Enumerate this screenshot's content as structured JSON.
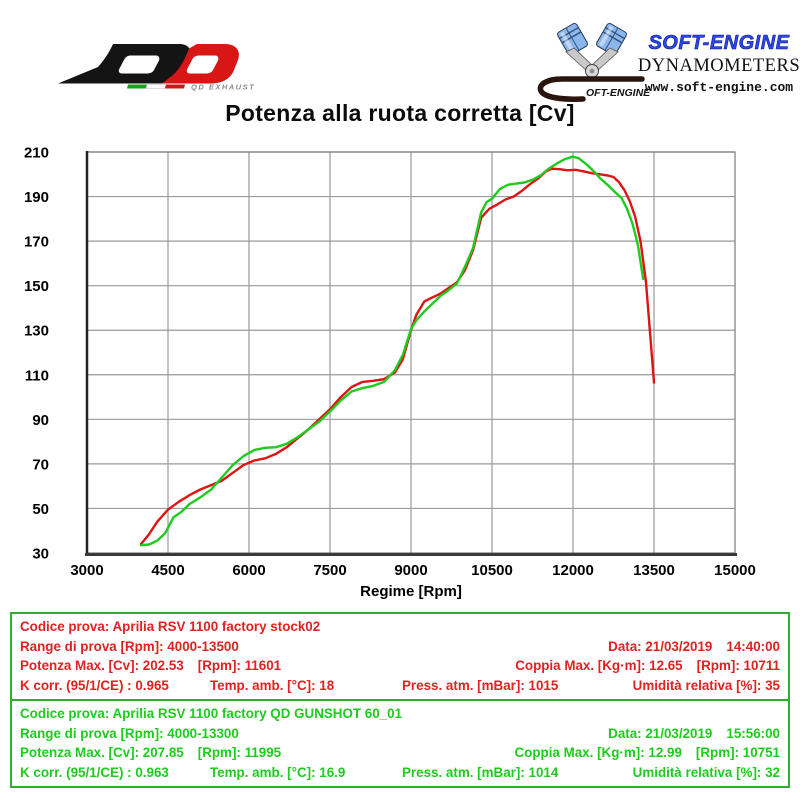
{
  "header": {
    "qd_logo": {
      "exhaust_text": "QD EXHAUST"
    },
    "soft_engine": {
      "brand": "SOFT-ENGINE",
      "subtitle": "DYNAMOMETERS",
      "website": "www.soft-engine.com",
      "script_text": "OFT-ENGINE"
    }
  },
  "chart_data": {
    "type": "line",
    "title": "Potenza alla ruota corretta [Cv]",
    "xlabel": "Regime [Rpm]",
    "ylabel": "",
    "xlim": [
      3000,
      15000
    ],
    "ylim": [
      30,
      210
    ],
    "x_ticks": [
      3000,
      4500,
      6000,
      7500,
      9000,
      10500,
      12000,
      13500,
      15000
    ],
    "y_ticks": [
      30,
      50,
      70,
      90,
      110,
      130,
      150,
      170,
      190,
      210
    ],
    "grid": true,
    "grid_color": "#9a9a9a",
    "legend_position": "none",
    "series": [
      {
        "id": "stock",
        "name": "Aprilia RSV 1100 factory stock02",
        "color": "#dd1414",
        "points": [
          [
            4000,
            34
          ],
          [
            4150,
            38.5
          ],
          [
            4300,
            44
          ],
          [
            4500,
            49.5
          ],
          [
            4700,
            53
          ],
          [
            4900,
            56
          ],
          [
            5100,
            58.5
          ],
          [
            5300,
            60.5
          ],
          [
            5500,
            62.5
          ],
          [
            5700,
            66
          ],
          [
            5900,
            69.5
          ],
          [
            6100,
            71.5
          ],
          [
            6300,
            72.5
          ],
          [
            6500,
            74.5
          ],
          [
            6700,
            77.5
          ],
          [
            6900,
            81.5
          ],
          [
            7100,
            85.5
          ],
          [
            7300,
            90
          ],
          [
            7500,
            94.5
          ],
          [
            7700,
            100
          ],
          [
            7900,
            104.5
          ],
          [
            8100,
            106.8
          ],
          [
            8300,
            107.3
          ],
          [
            8500,
            108
          ],
          [
            8700,
            111
          ],
          [
            8850,
            117
          ],
          [
            9000,
            130
          ],
          [
            9100,
            137
          ],
          [
            9250,
            143
          ],
          [
            9400,
            144.8
          ],
          [
            9550,
            146.5
          ],
          [
            9700,
            149
          ],
          [
            9850,
            151.5
          ],
          [
            10000,
            157
          ],
          [
            10150,
            166
          ],
          [
            10300,
            180.5
          ],
          [
            10450,
            184.5
          ],
          [
            10600,
            186.5
          ],
          [
            10750,
            188.7
          ],
          [
            10900,
            190
          ],
          [
            11050,
            192.5
          ],
          [
            11200,
            195.5
          ],
          [
            11350,
            198
          ],
          [
            11500,
            201.3
          ],
          [
            11601,
            202.5
          ],
          [
            11750,
            202.3
          ],
          [
            11900,
            201.8
          ],
          [
            12050,
            202
          ],
          [
            12200,
            201.3
          ],
          [
            12350,
            200.5
          ],
          [
            12500,
            200
          ],
          [
            12650,
            199.4
          ],
          [
            12750,
            198.8
          ],
          [
            12850,
            196.5
          ],
          [
            12950,
            193
          ],
          [
            13050,
            188
          ],
          [
            13150,
            181
          ],
          [
            13250,
            170
          ],
          [
            13350,
            152
          ],
          [
            13430,
            128
          ],
          [
            13500,
            106.5
          ]
        ]
      },
      {
        "id": "gunshot",
        "name": "Aprilia RSV 1100 factory QD GUNSHOT 60_01",
        "color": "#1ecb1e",
        "points": [
          [
            4000,
            33.5
          ],
          [
            4150,
            33.8
          ],
          [
            4300,
            35.5
          ],
          [
            4450,
            39
          ],
          [
            4600,
            46
          ],
          [
            4750,
            48.5
          ],
          [
            4900,
            52
          ],
          [
            5100,
            55
          ],
          [
            5300,
            58.5
          ],
          [
            5500,
            64
          ],
          [
            5700,
            69.5
          ],
          [
            5900,
            73.5
          ],
          [
            6100,
            76.3
          ],
          [
            6300,
            77.2
          ],
          [
            6500,
            77.5
          ],
          [
            6700,
            79
          ],
          [
            6900,
            82
          ],
          [
            7100,
            85.5
          ],
          [
            7300,
            89
          ],
          [
            7500,
            93.5
          ],
          [
            7700,
            98.5
          ],
          [
            7900,
            102.5
          ],
          [
            8100,
            104
          ],
          [
            8300,
            105
          ],
          [
            8500,
            106.8
          ],
          [
            8700,
            112
          ],
          [
            8850,
            119
          ],
          [
            9000,
            130.5
          ],
          [
            9100,
            134.5
          ],
          [
            9250,
            138.5
          ],
          [
            9400,
            142
          ],
          [
            9550,
            145.5
          ],
          [
            9700,
            148
          ],
          [
            9850,
            151
          ],
          [
            10000,
            158.5
          ],
          [
            10150,
            167
          ],
          [
            10300,
            183
          ],
          [
            10400,
            187.5
          ],
          [
            10500,
            189
          ],
          [
            10650,
            193.5
          ],
          [
            10800,
            195.3
          ],
          [
            10950,
            195.8
          ],
          [
            11100,
            196.3
          ],
          [
            11250,
            197.5
          ],
          [
            11400,
            199.5
          ],
          [
            11550,
            202.5
          ],
          [
            11700,
            204.8
          ],
          [
            11850,
            206.8
          ],
          [
            11995,
            207.9
          ],
          [
            12100,
            207.3
          ],
          [
            12250,
            204.5
          ],
          [
            12400,
            201
          ],
          [
            12500,
            198.3
          ],
          [
            12650,
            195
          ],
          [
            12800,
            191.5
          ],
          [
            12900,
            189.3
          ],
          [
            13000,
            184.5
          ],
          [
            13100,
            178
          ],
          [
            13200,
            168.5
          ],
          [
            13300,
            153
          ]
        ]
      }
    ]
  },
  "test_boxes": [
    {
      "text_color": "#e02222",
      "border_color": "#2fae2f",
      "codice": "Codice prova: Aprilia RSV 1100 factory stock02",
      "range": "Range di prova [Rpm]: 4000-13500",
      "date": "Data: 21/03/2019",
      "time": "14:40:00",
      "potenza": "Potenza Max. [Cv]: 202.53",
      "potenza_rpm": "[Rpm]: 11601",
      "coppia": "Coppia Max. [Kg·m]: 12.65",
      "coppia_rpm": "[Rpm]: 10711",
      "k_corr": "K corr. (95/1/CE) : 0.965",
      "temp": "Temp. amb. [°C]: 18",
      "press": "Press. atm. [mBar]: 1015",
      "umidita": "Umidità relativa [%]: 35"
    },
    {
      "text_color": "#1ecb1e",
      "border_color": "#2fae2f",
      "codice": "Codice prova: Aprilia RSV 1100 factory QD GUNSHOT 60_01",
      "range": "Range di prova [Rpm]: 4000-13300",
      "date": "Data: 21/03/2019",
      "time": "15:56:00",
      "potenza": "Potenza Max. [Cv]: 207.85",
      "potenza_rpm": "[Rpm]: 11995",
      "coppia": "Coppia Max. [Kg·m]: 12.99",
      "coppia_rpm": "[Rpm]: 10751",
      "k_corr": "K corr. (95/1/CE) : 0.963",
      "temp": "Temp. amb. [°C]: 16.9",
      "press": "Press. atm. [mBar]: 1014",
      "umidita": "Umidità relativa [%]: 32"
    }
  ]
}
